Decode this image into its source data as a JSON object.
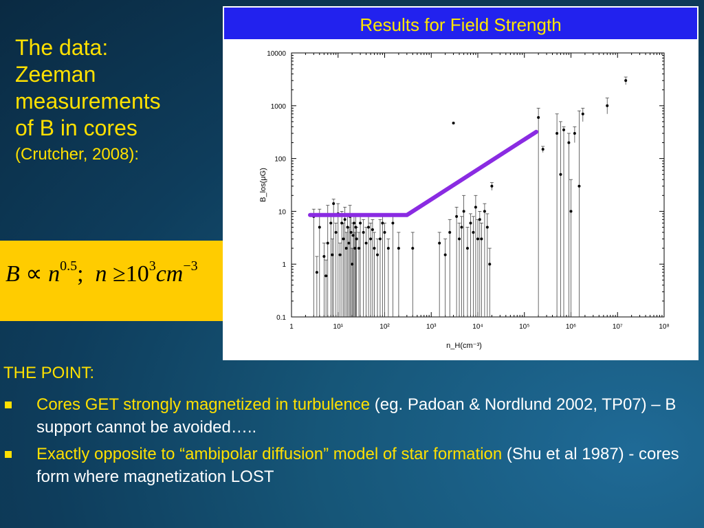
{
  "heading": {
    "lines": [
      "The data:",
      "Zeeman",
      "measurements",
      "of B in cores"
    ],
    "citation": "(Crutcher, 2008):"
  },
  "formula": {
    "b": "B",
    "prop": "∝",
    "n1": "n",
    "exp1": "0.5",
    "sep": ";",
    "n2": "n",
    "geq": "≥",
    "ten": "10",
    "exp2": "3",
    "unit": "cm",
    "exp3": "−3"
  },
  "chart_data": {
    "type": "scatter",
    "title": "Results for Field Strength",
    "xlabel": "n_H(cm⁻³)",
    "ylabel": "B_los(μG)",
    "xscale": "log",
    "yscale": "log",
    "xlim": [
      1,
      100000000
    ],
    "ylim": [
      0.1,
      10000
    ],
    "x_ticks": [
      "1",
      "10¹",
      "10²",
      "10³",
      "10⁴",
      "10⁵",
      "10⁶",
      "10⁷",
      "10⁸"
    ],
    "y_ticks": [
      "0.1",
      "1",
      "10",
      "100",
      "1000",
      "10000"
    ],
    "fit_line": {
      "color": "#8a2be2",
      "points": [
        [
          0.1,
          8.5
        ],
        [
          2.5,
          8.5
        ],
        [
          300,
          8.5
        ],
        [
          180000,
          320
        ]
      ]
    },
    "series": [
      {
        "points": [
          [
            3,
            8,
            0.1,
            11
          ],
          [
            3.5,
            0.7,
            0.1,
            1.4
          ],
          [
            4,
            5,
            0.1,
            11
          ],
          [
            5,
            1.4,
            0.1,
            2.5
          ],
          [
            5.5,
            0.6,
            0.1,
            1.2
          ],
          [
            6,
            2.5,
            0.1,
            13
          ],
          [
            7,
            6,
            0.1,
            9
          ],
          [
            7.5,
            1.5,
            0.1,
            3
          ],
          [
            8,
            14,
            0.1,
            17
          ],
          [
            9,
            4,
            0.1,
            6
          ],
          [
            10,
            9,
            0.1,
            14
          ],
          [
            11,
            1.5,
            0.1,
            2.5
          ],
          [
            12,
            6,
            0.1,
            10
          ],
          [
            13,
            3,
            0.1,
            6
          ],
          [
            14,
            7,
            0.1,
            12
          ],
          [
            15,
            2,
            0.1,
            4
          ],
          [
            16,
            5,
            0.1,
            9
          ],
          [
            17,
            2.5,
            0.1,
            5
          ],
          [
            18,
            8,
            0.1,
            13
          ],
          [
            19,
            4,
            0.1,
            9
          ],
          [
            20,
            1,
            0.1,
            2
          ],
          [
            21,
            3.5,
            0.1,
            6
          ],
          [
            22,
            6,
            0.1,
            8
          ],
          [
            23,
            2,
            0.1,
            4
          ],
          [
            24,
            5,
            0.1,
            8
          ],
          [
            25,
            3,
            0.1,
            5
          ],
          [
            28,
            2,
            0.1,
            4
          ],
          [
            30,
            6,
            0.1,
            9
          ],
          [
            35,
            4,
            0.1,
            7
          ],
          [
            40,
            2.5,
            0.1,
            5
          ],
          [
            45,
            5,
            0.1,
            8
          ],
          [
            50,
            3,
            0.1,
            6
          ],
          [
            55,
            4.5,
            0.1,
            7
          ],
          [
            60,
            2,
            0.1,
            4
          ],
          [
            70,
            1.5,
            0.1,
            3
          ],
          [
            80,
            3,
            0.1,
            7
          ],
          [
            90,
            6,
            0.1,
            8
          ],
          [
            100,
            4,
            0.1,
            6
          ],
          [
            120,
            2,
            0.1,
            3
          ],
          [
            150,
            6,
            0.1,
            8
          ],
          [
            200,
            2,
            0.1,
            4
          ],
          [
            400,
            2,
            0.1,
            4
          ],
          [
            1500,
            2.5,
            0.1,
            4
          ],
          [
            2000,
            1.5,
            0.1,
            3
          ],
          [
            2500,
            4,
            0.1,
            7
          ],
          [
            3000,
            470,
            470,
            470
          ],
          [
            3500,
            8,
            0.1,
            12
          ],
          [
            4000,
            3,
            0.1,
            6
          ],
          [
            4500,
            5,
            0.1,
            8
          ],
          [
            5000,
            10,
            0.1,
            20
          ],
          [
            6000,
            2,
            0.1,
            5
          ],
          [
            7000,
            6,
            0.1,
            9
          ],
          [
            8000,
            4,
            0.1,
            8
          ],
          [
            9000,
            12,
            0.1,
            20
          ],
          [
            10000,
            3,
            0.1,
            7
          ],
          [
            11000,
            7,
            0.1,
            10
          ],
          [
            12000,
            3,
            0.1,
            6
          ],
          [
            14000,
            10,
            0.1,
            14
          ],
          [
            16000,
            5,
            0.1,
            9
          ],
          [
            18000,
            1,
            0.1,
            2
          ],
          [
            20000,
            30,
            25,
            35
          ],
          [
            200000,
            600,
            0.1,
            900
          ],
          [
            250000,
            150,
            130,
            170
          ],
          [
            500000,
            300,
            0.1,
            700
          ],
          [
            600000,
            50,
            0.1,
            500
          ],
          [
            700000,
            350,
            0.1,
            400
          ],
          [
            900000,
            200,
            0.1,
            300
          ],
          [
            1000000,
            10,
            0.1,
            40
          ],
          [
            1200000,
            300,
            200,
            400
          ],
          [
            1500000,
            30,
            0.1,
            800
          ],
          [
            1800000,
            700,
            500,
            900
          ],
          [
            6000000,
            1000,
            700,
            1400
          ],
          [
            15000000,
            3000,
            2500,
            3500
          ]
        ]
      }
    ]
  },
  "point_title": "THE POINT:",
  "bullets": [
    {
      "highlight": "Cores GET strongly magnetized in turbulence",
      "rest": "  (eg. Padoan & Nordlund  2002, TP07) – B support cannot be avoided….."
    },
    {
      "highlight": "Exactly opposite to “ambipolar diffusion”  model of star formation",
      "rest": " (Shu et al 1987) - cores form where magnetization LOST"
    }
  ],
  "colors": {
    "heading_text": "#ffe000",
    "formula_box": "#ffcc00",
    "chart_banner": "#2222ee",
    "chart_title": "#ffe600",
    "fit_line": "#8a2be2",
    "bullet_text": "#ffffff"
  }
}
